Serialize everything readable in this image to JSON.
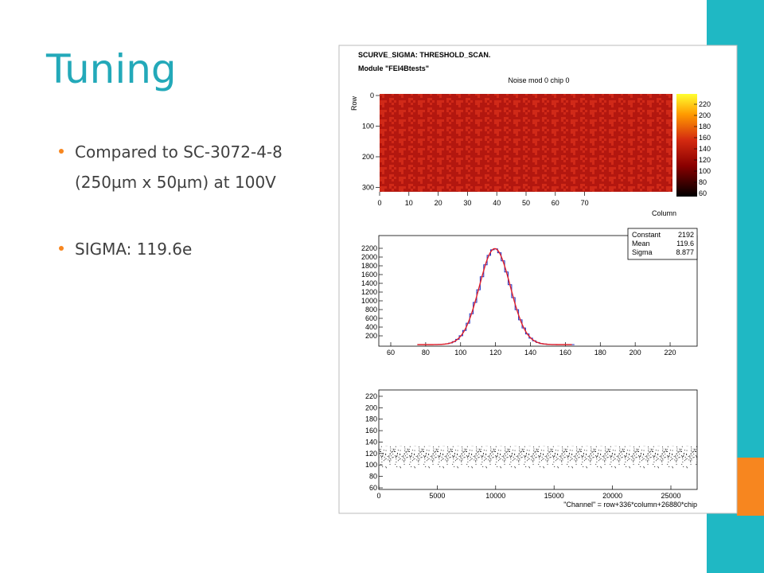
{
  "slide": {
    "title": "Tuning",
    "bullets": [
      "Compared to SC-3072-4-8 (250µm x 50µm) at 100V",
      "SIGMA: 119.6e"
    ]
  },
  "figure": {
    "header": [
      "SCURVE_SIGMA: THRESHOLD_SCAN.",
      "Module \"FEI4Btests\""
    ],
    "map": {
      "title": "Noise mod 0 chip 0",
      "y_label": "Row",
      "x_label": "Column",
      "xticks": [
        0,
        10,
        20,
        30,
        40,
        50,
        60,
        70
      ],
      "yticks": [
        0,
        100,
        200,
        300
      ],
      "zticks": [
        60,
        80,
        100,
        120,
        140,
        160,
        180,
        200,
        220
      ]
    },
    "histogram": {
      "xticks": [
        60,
        80,
        100,
        120,
        140,
        160,
        180,
        200,
        220
      ],
      "yticks": [
        200,
        400,
        600,
        800,
        1000,
        1200,
        1400,
        1600,
        1800,
        2000,
        2200
      ],
      "stats": [
        {
          "name": "Constant",
          "value": 2192
        },
        {
          "name": "Mean",
          "value": 119.6
        },
        {
          "name": "Sigma",
          "value": 8.877
        }
      ]
    },
    "scatter": {
      "x_label": "\"Channel\" = row+336*column+26880*chip",
      "xticks": [
        0,
        5000,
        10000,
        15000,
        20000,
        25000
      ],
      "yticks": [
        60,
        80,
        100,
        120,
        140,
        160,
        180,
        200,
        220
      ]
    }
  }
}
